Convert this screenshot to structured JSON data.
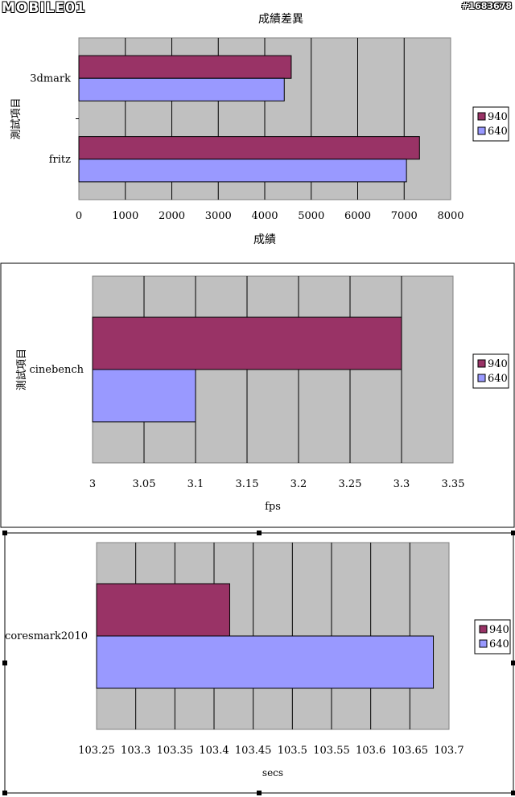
{
  "watermark": {
    "logo": "MOBILE01",
    "id": "#1683678"
  },
  "colors": {
    "series_940": "#993366",
    "series_640": "#9999ff",
    "plot_bg": "#c0c0c0"
  },
  "chart_data": [
    {
      "type": "bar",
      "orientation": "horizontal",
      "title": "成績差異",
      "xlabel": "成績",
      "ylabel": "測試項目",
      "categories": [
        "3dmark",
        "fritz"
      ],
      "series": [
        {
          "name": "940",
          "values": [
            4570,
            7330
          ]
        },
        {
          "name": "640",
          "values": [
            4420,
            7050
          ]
        }
      ],
      "xlim": [
        0,
        8000
      ],
      "xticks": [
        "0",
        "1000",
        "2000",
        "3000",
        "4000",
        "5000",
        "6000",
        "7000",
        "8000"
      ],
      "grid": true,
      "legend": "right"
    },
    {
      "type": "bar",
      "orientation": "horizontal",
      "title": "",
      "xlabel": "fps",
      "ylabel": "測試項目",
      "categories": [
        "cinebench"
      ],
      "series": [
        {
          "name": "940",
          "values": [
            3.3
          ]
        },
        {
          "name": "640",
          "values": [
            3.1
          ]
        }
      ],
      "xlim": [
        3,
        3.35
      ],
      "xticks": [
        "3",
        "3.05",
        "3.1",
        "3.15",
        "3.2",
        "3.25",
        "3.3",
        "3.35"
      ],
      "grid": true,
      "legend": "right"
    },
    {
      "type": "bar",
      "orientation": "horizontal",
      "title": "",
      "xlabel": "secs",
      "ylabel": "",
      "categories": [
        "coresmark2010"
      ],
      "series": [
        {
          "name": "940",
          "values": [
            103.42
          ]
        },
        {
          "name": "640",
          "values": [
            103.68
          ]
        }
      ],
      "xlim": [
        103.25,
        103.7
      ],
      "xticks": [
        "103.25",
        "103.3",
        "103.35",
        "103.4",
        "103.45",
        "103.5",
        "103.55",
        "103.6",
        "103.65",
        "103.7"
      ],
      "grid": true,
      "legend": "right"
    }
  ]
}
